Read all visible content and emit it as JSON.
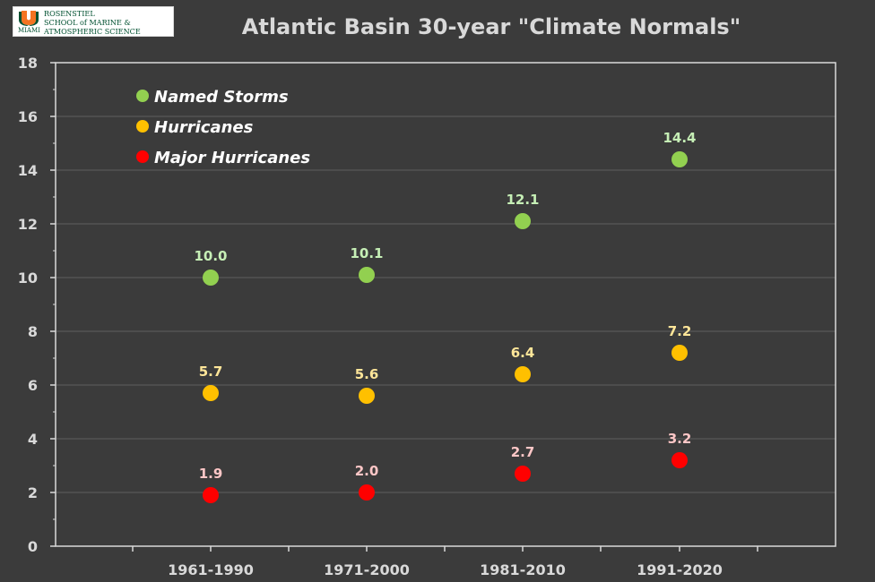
{
  "logo": {
    "city": "MIAMI",
    "lines": [
      "ROSENSTIEL",
      "SCHOOL of MARINE &",
      "ATMOSPHERIC SCIENCE"
    ],
    "colors": {
      "green": "#005030",
      "orange": "#f47321"
    }
  },
  "chart_data": {
    "type": "scatter",
    "title": "Atlantic Basin 30-year \"Climate Normals\"",
    "categories": [
      "1961-1990",
      "1971-2000",
      "1981-2010",
      "1991-2020"
    ],
    "series": [
      {
        "name": "Named Storms",
        "values": [
          10.0,
          10.1,
          12.1,
          14.4
        ],
        "labels": [
          "10.0",
          "10.1",
          "12.1",
          "14.4"
        ],
        "color": "#92d050",
        "label_color": "#c6efb6"
      },
      {
        "name": "Hurricanes",
        "values": [
          5.7,
          5.6,
          6.4,
          7.2
        ],
        "labels": [
          "5.7",
          "5.6",
          "6.4",
          "7.2"
        ],
        "color": "#ffc000",
        "label_color": "#ffe699"
      },
      {
        "name": "Major Hurricanes",
        "values": [
          1.9,
          2.0,
          2.7,
          3.2
        ],
        "labels": [
          "1.9",
          "2.0",
          "2.7",
          "3.2"
        ],
        "color": "#ff0000",
        "label_color": "#ffc7c7"
      }
    ],
    "yticks": [
      "0",
      "2",
      "4",
      "6",
      "8",
      "10",
      "12",
      "14",
      "16",
      "18"
    ],
    "ylim": [
      0,
      18
    ],
    "grid": true,
    "legend": "top-left",
    "colors": {
      "background": "#3b3b3b",
      "grid": "#5f5f5f",
      "axis": "#d9d9d9",
      "text": "#d9d9d9"
    }
  }
}
